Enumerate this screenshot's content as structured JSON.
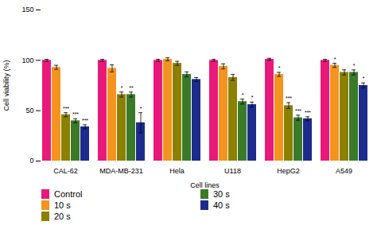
{
  "chart_data": {
    "type": "bar",
    "xlabel": "Cell lines",
    "ylabel": "Cell viability (%)",
    "categories": [
      "CAL-62",
      "MDA-MB-231",
      "Hela",
      "U118",
      "HepG2",
      "A549"
    ],
    "series": [
      {
        "name": "Control",
        "color": "#E8197A",
        "values": [
          100,
          100,
          100,
          100,
          101,
          100
        ],
        "errors": [
          1.0,
          1.0,
          1.0,
          1.0,
          1.0,
          1.0
        ]
      },
      {
        "name": "10 s",
        "color": "#F4931E",
        "values": [
          93,
          92,
          101,
          94,
          86,
          95
        ],
        "errors": [
          2.0,
          3.5,
          1.5,
          2.5,
          2.0,
          2.0
        ]
      },
      {
        "name": "20 s",
        "color": "#8B8000",
        "values": [
          46,
          66,
          97,
          83,
          55,
          88
        ],
        "errors": [
          2.0,
          2.5,
          2.0,
          3.0,
          3.0,
          2.5
        ]
      },
      {
        "name": "30 s",
        "color": "#3A7A28",
        "values": [
          40,
          66,
          86,
          59,
          43,
          88
        ],
        "errors": [
          2.0,
          2.5,
          2.5,
          2.5,
          2.5,
          2.5
        ]
      },
      {
        "name": "40 s",
        "color": "#1C2B8C",
        "values": [
          34,
          38,
          81,
          56,
          42,
          75
        ],
        "errors": [
          2.0,
          10.0,
          2.0,
          2.5,
          2.0,
          2.5
        ]
      }
    ],
    "annotations": [
      {
        "category": "CAL-62",
        "series": "20 s",
        "text": "***"
      },
      {
        "category": "CAL-62",
        "series": "30 s",
        "text": "***"
      },
      {
        "category": "CAL-62",
        "series": "40 s",
        "text": "***"
      },
      {
        "category": "MDA-MB-231",
        "series": "20 s",
        "text": "*"
      },
      {
        "category": "MDA-MB-231",
        "series": "30 s",
        "text": "**"
      },
      {
        "category": "MDA-MB-231",
        "series": "40 s",
        "text": "*"
      },
      {
        "category": "U118",
        "series": "30 s",
        "text": "*"
      },
      {
        "category": "U118",
        "series": "40 s",
        "text": "*"
      },
      {
        "category": "HepG2",
        "series": "10 s",
        "text": "*"
      },
      {
        "category": "HepG2",
        "series": "20 s",
        "text": "***"
      },
      {
        "category": "HepG2",
        "series": "30 s",
        "text": "***"
      },
      {
        "category": "HepG2",
        "series": "40 s",
        "text": "***"
      },
      {
        "category": "A549",
        "series": "10 s",
        "text": "*"
      },
      {
        "category": "A549",
        "series": "30 s",
        "text": "*"
      },
      {
        "category": "A549",
        "series": "40 s",
        "text": "*"
      }
    ],
    "ylim": [
      0,
      150
    ],
    "yticks": [
      0,
      50,
      100,
      150
    ],
    "grid": false,
    "legend": "bottom"
  }
}
